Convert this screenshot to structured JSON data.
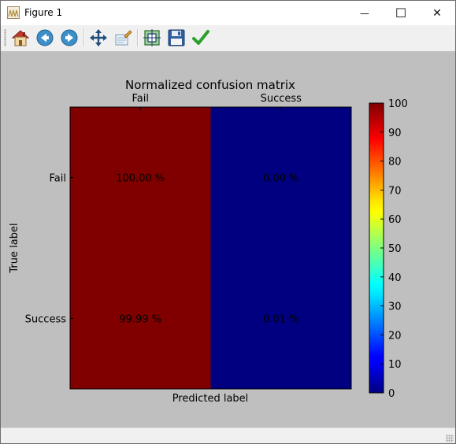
{
  "window": {
    "title": "Figure 1",
    "minimize_glyph": "—",
    "maximize_glyph": "☐",
    "close_glyph": "✕"
  },
  "toolbar": {
    "buttons": [
      {
        "name": "home-icon"
      },
      {
        "name": "back-icon"
      },
      {
        "name": "forward-icon"
      },
      {
        "name": "pan-icon"
      },
      {
        "name": "zoom-icon"
      },
      {
        "name": "configure-subplots-icon"
      },
      {
        "name": "save-icon"
      },
      {
        "name": "edit-check-icon"
      }
    ]
  },
  "chart_data": {
    "type": "heatmap",
    "title": "Normalized confusion matrix",
    "xlabel": "Predicted label",
    "ylabel": "True label",
    "x_categories": [
      "Fail",
      "Success"
    ],
    "y_categories": [
      "Fail",
      "Success"
    ],
    "values": [
      [
        100.0,
        0.0
      ],
      [
        99.99,
        0.01
      ]
    ],
    "cell_labels": [
      [
        "100.00 %",
        "0.00 %"
      ],
      [
        "99.99 %",
        "0.01 %"
      ]
    ],
    "colormap": "jet",
    "colorbar": {
      "range": [
        0,
        100
      ],
      "ticks": [
        "0",
        "10",
        "20",
        "30",
        "40",
        "50",
        "60",
        "70",
        "80",
        "90",
        "100"
      ]
    }
  }
}
